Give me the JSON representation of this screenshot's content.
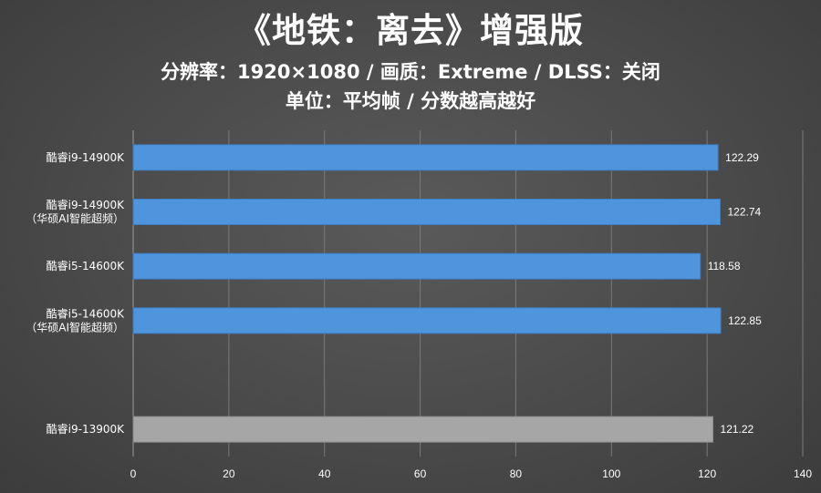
{
  "chart_data": {
    "type": "bar",
    "orientation": "horizontal",
    "title": "《地铁：离去》增强版",
    "subtitle_lines": [
      "分辨率：1920×1080 / 画质：Extreme / DLSS：关闭",
      "单位：平均帧 / 分数越高越好"
    ],
    "categories": [
      [
        "酷睿i9-14900K"
      ],
      [
        "酷睿i9-14900K",
        "（华硕AI智能超频）"
      ],
      [
        "酷睿i5-14600K"
      ],
      [
        "酷睿i5-14600K",
        "（华硕AI智能超频）"
      ],
      [],
      [
        "酷睿i9-13900K"
      ]
    ],
    "values": [
      122.29,
      122.74,
      118.58,
      122.85,
      null,
      121.22
    ],
    "value_labels": [
      "122.29",
      "122.74",
      "118.58",
      "122.85",
      "",
      "121.22"
    ],
    "bar_colors": [
      "#4e95de",
      "#4e95de",
      "#4e95de",
      "#4e95de",
      "",
      "#a6a6a6"
    ],
    "xlim": [
      0,
      140
    ],
    "xticks": [
      "0",
      "20",
      "40",
      "60",
      "80",
      "100",
      "120",
      "140"
    ],
    "grid": "vertical",
    "xlabel": "",
    "ylabel": ""
  }
}
